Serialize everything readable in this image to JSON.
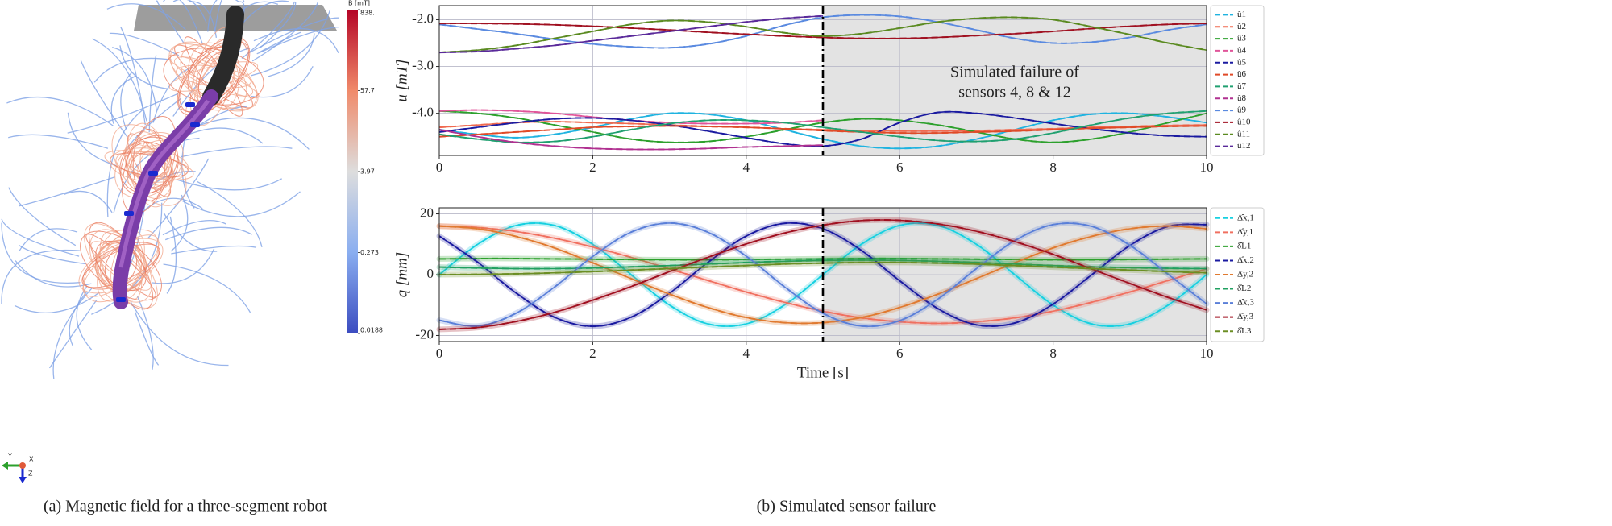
{
  "panel_a": {
    "caption": "(a)  Magnetic field for a three-segment robot",
    "colorbar": {
      "label": "B [mT]",
      "scale": "log",
      "lim": [
        0.0188,
        838
      ],
      "ticks": [
        {
          "value": 838,
          "label": "838."
        },
        57.7,
        3.97,
        0.273,
        0.0188
      ]
    },
    "triad": [
      "Y",
      "X",
      "Z"
    ]
  },
  "panel_b": {
    "caption": "(b)  Simulated sensor failure"
  },
  "chart_data": [
    {
      "type": "line",
      "ylabel": "u [mT]",
      "xlim": [
        0,
        10
      ],
      "xticks": [
        0,
        2,
        4,
        6,
        8,
        10
      ],
      "ylim": [
        -4.9,
        -1.7
      ],
      "yticks": [
        {
          "value": -2,
          "label": "-2.0"
        },
        {
          "value": -3,
          "label": "-3.0"
        },
        {
          "value": -4,
          "label": "-4.0"
        }
      ],
      "grid": true,
      "legend": "outside right",
      "failure_time": 5,
      "annotation": [
        "Simulated failure of",
        "sensors 4, 8 & 12"
      ],
      "x": [
        0,
        0.5,
        1,
        1.5,
        2,
        2.5,
        3,
        3.5,
        4,
        4.5,
        5,
        5.5,
        6,
        6.5,
        7,
        7.5,
        8,
        8.5,
        9,
        9.5,
        10
      ],
      "series": [
        {
          "name": "û1",
          "color": "#1fb3e0",
          "values": [
            -4.35,
            -4.45,
            -4.52,
            -4.45,
            -4.3,
            -4.12,
            -4.0,
            -4.02,
            -4.15,
            -4.35,
            -4.55,
            -4.7,
            -4.75,
            -4.7,
            -4.55,
            -4.35,
            -4.15,
            -4.02,
            -4.0,
            -4.08,
            -4.2
          ]
        },
        {
          "name": "û2",
          "color": "#f06a50",
          "values": [
            -4.3,
            -4.25,
            -4.2,
            -4.18,
            -4.2,
            -4.22,
            -4.25,
            -4.28,
            -4.3,
            -4.33,
            -4.35,
            -4.37,
            -4.38,
            -4.38,
            -4.37,
            -4.35,
            -4.33,
            -4.3,
            -4.28,
            -4.26,
            -4.25
          ]
        },
        {
          "name": "û3",
          "color": "#2ca02c",
          "values": [
            -3.95,
            -4.0,
            -4.1,
            -4.25,
            -4.4,
            -4.55,
            -4.62,
            -4.6,
            -4.5,
            -4.35,
            -4.2,
            -4.12,
            -4.15,
            -4.25,
            -4.4,
            -4.55,
            -4.62,
            -4.55,
            -4.4,
            -4.2,
            -4.0
          ]
        },
        {
          "name": "û4",
          "color": "#e0559a",
          "values": [
            -3.95,
            -3.93,
            -3.95,
            -4.0,
            -4.08,
            -4.15,
            -4.2,
            -4.22,
            -4.22,
            -4.2,
            -4.15,
            null,
            null,
            null,
            null,
            null,
            null,
            null,
            null,
            null,
            null
          ]
        },
        {
          "name": "û5",
          "color": "#1a1aa0",
          "values": [
            -4.4,
            -4.3,
            -4.2,
            -4.12,
            -4.1,
            -4.15,
            -4.25,
            -4.38,
            -4.52,
            -4.65,
            -4.7,
            -4.55,
            -4.2,
            -3.98,
            -4.0,
            -4.1,
            -4.22,
            -4.33,
            -4.42,
            -4.48,
            -4.5
          ]
        },
        {
          "name": "û6",
          "color": "#e04a28",
          "values": [
            -4.5,
            -4.45,
            -4.4,
            -4.35,
            -4.3,
            -4.28,
            -4.27,
            -4.28,
            -4.3,
            -4.33,
            -4.37,
            -4.4,
            -4.42,
            -4.42,
            -4.4,
            -4.38,
            -4.35,
            -4.32,
            -4.3,
            -4.28,
            -4.27
          ]
        },
        {
          "name": "û7",
          "color": "#20a070",
          "values": [
            -4.45,
            -4.55,
            -4.62,
            -4.6,
            -4.5,
            -4.35,
            -4.22,
            -4.15,
            -4.15,
            -4.2,
            -4.3,
            -4.4,
            -4.5,
            -4.58,
            -4.6,
            -4.55,
            -4.42,
            -4.25,
            -4.1,
            -4.0,
            -3.95
          ]
        },
        {
          "name": "û8",
          "color": "#b03090",
          "values": [
            -4.35,
            -4.5,
            -4.62,
            -4.7,
            -4.75,
            -4.77,
            -4.77,
            -4.75,
            -4.72,
            -4.7,
            -4.68,
            null,
            null,
            null,
            null,
            null,
            null,
            null,
            null,
            null,
            null
          ]
        },
        {
          "name": "û9",
          "color": "#5a8ae0",
          "values": [
            -2.1,
            -2.2,
            -2.3,
            -2.42,
            -2.52,
            -2.58,
            -2.6,
            -2.52,
            -2.35,
            -2.12,
            -1.95,
            -1.9,
            -1.93,
            -2.05,
            -2.22,
            -2.4,
            -2.5,
            -2.48,
            -2.38,
            -2.22,
            -2.1
          ]
        },
        {
          "name": "û10",
          "color": "#a01020",
          "values": [
            -2.08,
            -2.08,
            -2.09,
            -2.11,
            -2.14,
            -2.18,
            -2.22,
            -2.27,
            -2.31,
            -2.35,
            -2.38,
            -2.4,
            -2.4,
            -2.38,
            -2.34,
            -2.3,
            -2.25,
            -2.19,
            -2.14,
            -2.1,
            -2.08
          ]
        },
        {
          "name": "û11",
          "color": "#5a8a20",
          "values": [
            -2.7,
            -2.65,
            -2.55,
            -2.4,
            -2.25,
            -2.1,
            -2.02,
            -2.05,
            -2.15,
            -2.28,
            -2.35,
            -2.3,
            -2.18,
            -2.05,
            -1.97,
            -1.95,
            -2.0,
            -2.15,
            -2.32,
            -2.5,
            -2.65
          ]
        },
        {
          "name": "û12",
          "color": "#5a2a9a",
          "values": [
            -2.7,
            -2.68,
            -2.62,
            -2.55,
            -2.45,
            -2.35,
            -2.25,
            -2.15,
            -2.05,
            -1.97,
            -1.92,
            null,
            null,
            null,
            null,
            null,
            null,
            null,
            null,
            null,
            null
          ]
        }
      ]
    },
    {
      "type": "line",
      "xlabel": "Time [s]",
      "ylabel": "q [mm]",
      "xlim": [
        0,
        10
      ],
      "xticks": [
        0,
        2,
        4,
        6,
        8,
        10
      ],
      "ylim": [
        -22,
        22
      ],
      "yticks": [
        -20,
        0,
        20
      ],
      "grid": true,
      "legend": "outside right",
      "failure_time": 5,
      "x": [
        0,
        0.5,
        1,
        1.5,
        2,
        2.5,
        3,
        3.5,
        4,
        4.5,
        5,
        5.5,
        6,
        6.5,
        7,
        7.5,
        8,
        8.5,
        9,
        9.5,
        10
      ],
      "series": [
        {
          "name": "Δ̂x,1",
          "color": "#17d0e0",
          "values": [
            0,
            10,
            16.2,
            16.2,
            10,
            0,
            -10,
            -16.2,
            -16.2,
            -10,
            0,
            10,
            16.2,
            16.2,
            10,
            0,
            -10,
            -16.2,
            -16.2,
            -10,
            0
          ]
        },
        {
          "name": "Δ̂y,1",
          "color": "#f07060",
          "values": [
            16,
            15.5,
            14.2,
            12.0,
            9.1,
            5.7,
            1.9,
            -1.9,
            -5.7,
            -9.1,
            -12.0,
            -14.2,
            -15.5,
            -16,
            -15.5,
            -14.2,
            -12.0,
            -9.1,
            -5.7,
            -1.9,
            1.9
          ]
        },
        {
          "name": "δ̂L1",
          "color": "#2ca02c",
          "values": [
            5.2,
            5.3,
            5.3,
            5.2,
            5.1,
            5.0,
            4.9,
            4.9,
            5.0,
            5.1,
            5.2,
            5.3,
            5.3,
            5.2,
            5.1,
            5.0,
            4.9,
            4.9,
            5.0,
            5.1,
            5.2
          ]
        },
        {
          "name": "Δ̂x,2",
          "color": "#1a1aa0",
          "values": [
            12.7,
            4.1,
            -6.0,
            -14.0,
            -17.0,
            -14.0,
            -6.1,
            4.0,
            12.7,
            16.9,
            15.1,
            8.0,
            -2.0,
            -11.2,
            -16.5,
            -15.9,
            -9.7,
            -0.1,
            9.6,
            15.9,
            16.5
          ]
        },
        {
          "name": "Δ̂y,2",
          "color": "#e07a30",
          "values": [
            16,
            15.1,
            12.6,
            8.8,
            3.9,
            -1.3,
            -6.4,
            -10.8,
            -14.1,
            -15.8,
            -15.8,
            -14.1,
            -10.8,
            -6.4,
            -1.3,
            3.9,
            8.8,
            12.6,
            15.1,
            16,
            15.1
          ]
        },
        {
          "name": "δ̂L2",
          "color": "#20a060",
          "values": [
            2.5,
            2.2,
            2.0,
            2.0,
            2.2,
            2.6,
            3.0,
            3.5,
            4.0,
            4.4,
            4.7,
            4.8,
            4.7,
            4.4,
            4.0,
            3.5,
            3.0,
            2.6,
            2.3,
            2.1,
            2.0
          ]
        },
        {
          "name": "Δ̂x,3",
          "color": "#5a7fd8",
          "values": [
            -15.0,
            -16.9,
            -12.7,
            -4.1,
            6.0,
            14.0,
            17.0,
            14.0,
            6.1,
            -4.0,
            -12.7,
            -16.9,
            -15.1,
            -8.0,
            2.0,
            11.2,
            16.5,
            15.9,
            9.7,
            0.1,
            -9.6
          ]
        },
        {
          "name": "Δ̂y,3",
          "color": "#a01020",
          "values": [
            -18,
            -17.4,
            -15.4,
            -12.4,
            -8.4,
            -3.9,
            1.0,
            5.7,
            10.1,
            13.7,
            16.3,
            17.8,
            17.9,
            16.7,
            14.3,
            10.9,
            6.7,
            1.9,
            -2.9,
            -7.5,
            -11.6
          ]
        },
        {
          "name": "δ̂L3",
          "color": "#6b8e23",
          "values": [
            0,
            0.1,
            0.3,
            0.6,
            1.0,
            1.5,
            2.0,
            2.5,
            3.0,
            3.5,
            3.8,
            4.0,
            4.0,
            3.8,
            3.5,
            3.0,
            2.5,
            2.0,
            1.5,
            1.0,
            0.6
          ]
        }
      ]
    }
  ]
}
